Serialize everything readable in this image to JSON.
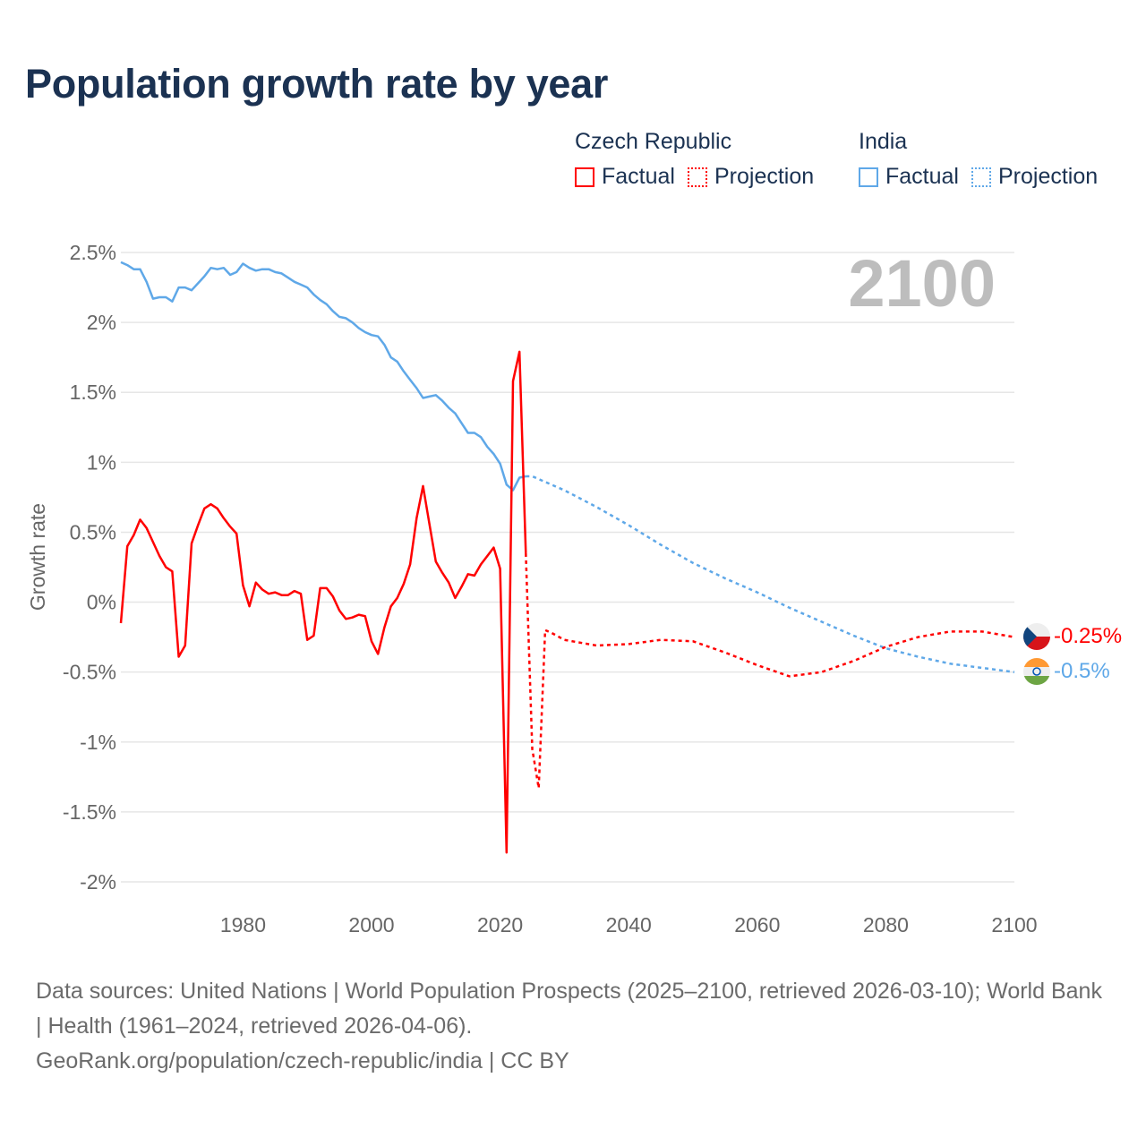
{
  "chart_data": {
    "type": "line",
    "title": "Population growth rate by year",
    "xlabel": "",
    "ylabel": "Growth rate",
    "xlim": [
      1961,
      2100
    ],
    "ylim": [
      -2,
      2.5
    ],
    "x_ticks": [
      1980,
      2000,
      2020,
      2040,
      2060,
      2080,
      2100
    ],
    "y_ticks": [
      2.5,
      2,
      1.5,
      1,
      0.5,
      0,
      -0.5,
      -1,
      -1.5,
      -2
    ],
    "y_tick_labels": [
      "2.5%",
      "2%",
      "1.5%",
      "1%",
      "0.5%",
      "0%",
      "-0.5%",
      "-1%",
      "-1.5%",
      "-2%"
    ],
    "grid": true,
    "year_display": "2100",
    "legend_position": "top-right",
    "legend": {
      "groups": [
        {
          "name": "Czech Republic",
          "items": [
            "Factual",
            "Projection"
          ],
          "color": "#ff0000"
        },
        {
          "name": "India",
          "items": [
            "Factual",
            "Projection"
          ],
          "color": "#5fa8e8"
        }
      ]
    },
    "series": [
      {
        "name": "Czech Republic",
        "color": "#ff0000",
        "end_label": "-0.25%",
        "flag": "czech-flag",
        "factual": {
          "x": [
            1961,
            1962,
            1963,
            1964,
            1965,
            1966,
            1967,
            1968,
            1969,
            1970,
            1971,
            1972,
            1973,
            1974,
            1975,
            1976,
            1977,
            1978,
            1979,
            1980,
            1981,
            1982,
            1983,
            1984,
            1985,
            1986,
            1987,
            1988,
            1989,
            1990,
            1991,
            1992,
            1993,
            1994,
            1995,
            1996,
            1997,
            1998,
            1999,
            2000,
            2001,
            2002,
            2003,
            2004,
            2005,
            2006,
            2007,
            2008,
            2009,
            2010,
            2011,
            2012,
            2013,
            2014,
            2015,
            2016,
            2017,
            2018,
            2019,
            2020,
            2021,
            2022,
            2023,
            2024
          ],
          "y": [
            -0.15,
            0.4,
            0.48,
            0.59,
            0.53,
            0.43,
            0.33,
            0.25,
            0.22,
            -0.39,
            -0.31,
            0.42,
            0.55,
            0.67,
            0.7,
            0.67,
            0.6,
            0.54,
            0.49,
            0.12,
            -0.03,
            0.14,
            0.09,
            0.06,
            0.07,
            0.05,
            0.05,
            0.08,
            0.06,
            -0.27,
            -0.24,
            0.1,
            0.1,
            0.04,
            -0.06,
            -0.12,
            -0.11,
            -0.09,
            -0.1,
            -0.28,
            -0.37,
            -0.18,
            -0.03,
            0.03,
            0.13,
            0.27,
            0.6,
            0.83,
            0.56,
            0.29,
            0.21,
            0.14,
            0.03,
            0.11,
            0.2,
            0.19,
            0.27,
            0.33,
            0.39,
            0.24,
            -1.79,
            1.58,
            1.79,
            0.35
          ]
        },
        "projection": {
          "x": [
            2024,
            2025,
            2026,
            2027,
            2028,
            2030,
            2035,
            2040,
            2045,
            2050,
            2055,
            2060,
            2065,
            2070,
            2075,
            2080,
            2085,
            2090,
            2095,
            2100
          ],
          "y": [
            0.35,
            -1.05,
            -1.33,
            -0.2,
            -0.22,
            -0.27,
            -0.31,
            -0.3,
            -0.27,
            -0.28,
            -0.36,
            -0.45,
            -0.53,
            -0.5,
            -0.42,
            -0.32,
            -0.25,
            -0.21,
            -0.21,
            -0.25
          ]
        }
      },
      {
        "name": "India",
        "color": "#5fa8e8",
        "end_label": "-0.5%",
        "flag": "india-flag",
        "factual": {
          "x": [
            1961,
            1962,
            1963,
            1964,
            1965,
            1966,
            1967,
            1968,
            1969,
            1970,
            1971,
            1972,
            1973,
            1974,
            1975,
            1976,
            1977,
            1978,
            1979,
            1980,
            1981,
            1982,
            1983,
            1984,
            1985,
            1986,
            1987,
            1988,
            1989,
            1990,
            1991,
            1992,
            1993,
            1994,
            1995,
            1996,
            1997,
            1998,
            1999,
            2000,
            2001,
            2002,
            2003,
            2004,
            2005,
            2006,
            2007,
            2008,
            2009,
            2010,
            2011,
            2012,
            2013,
            2014,
            2015,
            2016,
            2017,
            2018,
            2019,
            2020,
            2021,
            2022,
            2023,
            2024
          ],
          "y": [
            2.43,
            2.41,
            2.38,
            2.38,
            2.29,
            2.17,
            2.18,
            2.18,
            2.15,
            2.25,
            2.25,
            2.23,
            2.28,
            2.33,
            2.39,
            2.38,
            2.39,
            2.34,
            2.36,
            2.42,
            2.39,
            2.37,
            2.38,
            2.38,
            2.36,
            2.35,
            2.32,
            2.29,
            2.27,
            2.25,
            2.2,
            2.16,
            2.13,
            2.08,
            2.04,
            2.03,
            2.0,
            1.96,
            1.93,
            1.91,
            1.9,
            1.84,
            1.75,
            1.72,
            1.65,
            1.59,
            1.53,
            1.46,
            1.47,
            1.48,
            1.44,
            1.39,
            1.35,
            1.28,
            1.21,
            1.21,
            1.18,
            1.11,
            1.06,
            0.99,
            0.84,
            0.8,
            0.89,
            0.9
          ]
        },
        "projection": {
          "x": [
            2024,
            2025,
            2030,
            2035,
            2040,
            2045,
            2050,
            2055,
            2060,
            2065,
            2070,
            2075,
            2080,
            2085,
            2090,
            2095,
            2100
          ],
          "y": [
            0.9,
            0.9,
            0.8,
            0.68,
            0.55,
            0.41,
            0.28,
            0.17,
            0.07,
            -0.04,
            -0.14,
            -0.24,
            -0.33,
            -0.39,
            -0.44,
            -0.47,
            -0.5
          ]
        }
      }
    ]
  },
  "footer": {
    "sources": "Data sources: United Nations | World Population Prospects (2025–2100, retrieved 2026-03-10); World Bank | Health (1961–2024, retrieved 2026-04-06).",
    "credit": "GeoRank.org/population/czech-republic/india | CC BY"
  }
}
